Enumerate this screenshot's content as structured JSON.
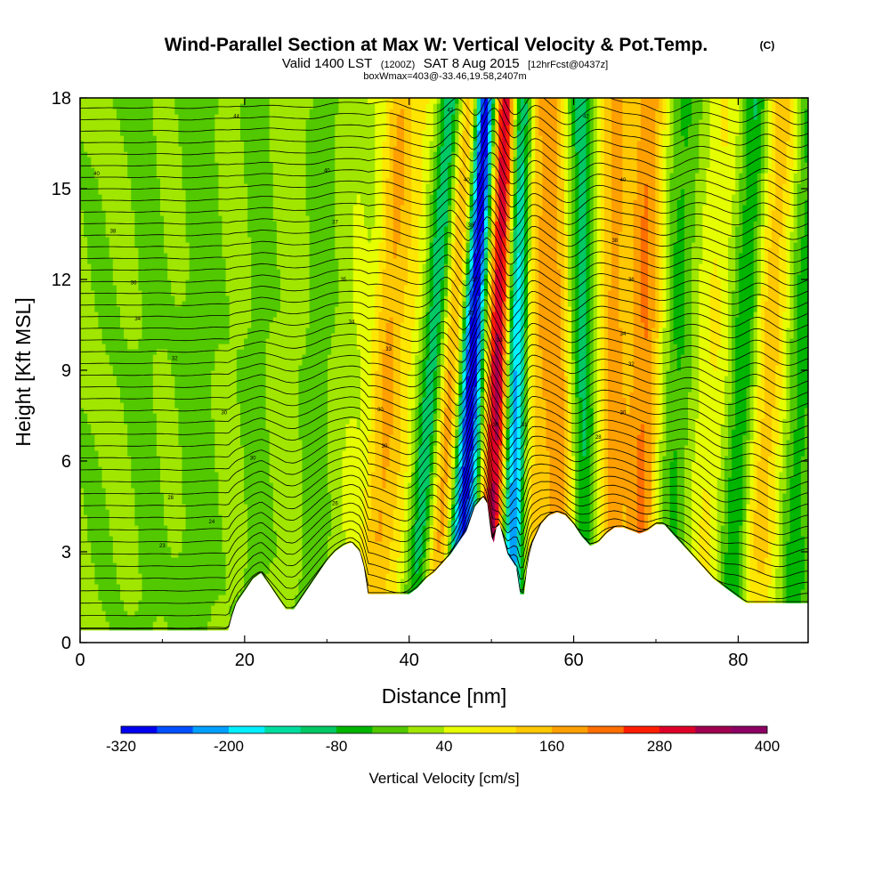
{
  "title": {
    "main": "Wind-Parallel Section at Max W: Vertical Velocity & Pot.Temp.",
    "copyright": "(C)",
    "valid_a": "Valid 1400 LST",
    "valid_b": "(1200Z)",
    "valid_c": "SAT 8 Aug 2015",
    "valid_d": "[12hrFcst@0437z]",
    "box": "boxWmax=403@-33.46,19.58,2407m"
  },
  "colors": {
    "terrain": "#ffffff",
    "contour": "#000000",
    "background": "#ffffff"
  },
  "chart_data": {
    "type": "heatmap",
    "xlabel": "Distance [nm]",
    "ylabel": "Height [Kft MSL]",
    "xlim": [
      0,
      88.5
    ],
    "ylim": [
      0,
      18
    ],
    "x_ticks": [
      0,
      20,
      40,
      60,
      80
    ],
    "y_ticks": [
      0,
      3,
      6,
      9,
      12,
      15,
      18
    ],
    "x_tick_labels": [
      "0",
      "20",
      "40",
      "60",
      "80"
    ],
    "y_tick_labels": [
      "0",
      "3",
      "6",
      "9",
      "12",
      "15",
      "18"
    ],
    "colorbar": {
      "label": "Vertical Velocity [cm/s]",
      "tick_values": [
        -320,
        -200,
        -80,
        40,
        160,
        280,
        400
      ],
      "tick_labels": [
        "-320",
        "-200",
        "-80",
        "40",
        "160",
        "280",
        "400"
      ],
      "levels": [
        -320,
        -280,
        -240,
        -200,
        -160,
        -120,
        -80,
        -40,
        0,
        40,
        80,
        120,
        160,
        200,
        240,
        280,
        320,
        360,
        400
      ],
      "colors": [
        "#0000f0",
        "#0050ff",
        "#00a0ff",
        "#00f0ff",
        "#00dca0",
        "#00c864",
        "#00b400",
        "#52c800",
        "#a0e600",
        "#e6ff00",
        "#ffe600",
        "#ffc800",
        "#ffa000",
        "#ff6e00",
        "#ff1e00",
        "#dc0028",
        "#a00050",
        "#8c0064"
      ]
    },
    "terrain_profile": {
      "x": [
        0,
        18,
        18.5,
        19,
        20,
        21,
        22,
        23,
        24,
        25,
        26,
        27,
        28,
        29,
        30,
        31,
        32,
        33,
        34,
        34.5,
        35,
        36,
        37,
        38,
        39,
        40,
        41,
        42,
        43,
        44,
        45,
        46,
        47,
        47.5,
        48,
        49,
        49.5,
        50,
        50.3,
        50.6,
        51,
        52,
        53,
        53.5,
        54,
        54.3,
        54.6,
        55,
        56,
        57,
        58,
        59,
        60,
        61,
        62,
        63,
        64,
        65,
        66,
        67,
        68,
        69,
        70,
        71,
        72,
        73,
        74,
        75,
        76,
        77,
        78,
        79,
        80,
        81,
        82,
        83,
        84,
        85,
        86,
        87,
        88.5
      ],
      "y": [
        0.4,
        0.4,
        0.9,
        1.3,
        1.7,
        2.1,
        2.3,
        1.9,
        1.5,
        1.1,
        1.1,
        1.5,
        1.9,
        2.3,
        2.7,
        3.0,
        3.2,
        3.3,
        3.0,
        2.5,
        1.6,
        1.6,
        1.6,
        1.6,
        1.6,
        1.6,
        1.8,
        2.1,
        2.3,
        2.6,
        2.9,
        3.3,
        3.7,
        4.1,
        4.5,
        4.8,
        4.6,
        3.5,
        3.3,
        3.8,
        3.9,
        2.9,
        2.5,
        1.6,
        1.6,
        2.4,
        2.9,
        3.3,
        3.9,
        4.2,
        4.3,
        4.2,
        3.9,
        3.5,
        3.2,
        3.3,
        3.6,
        3.8,
        3.8,
        3.7,
        3.6,
        3.7,
        3.9,
        3.9,
        3.6,
        3.3,
        3.0,
        2.7,
        2.4,
        2.1,
        1.9,
        1.7,
        1.5,
        1.3,
        1.3,
        1.3,
        1.3,
        1.3,
        1.3,
        1.3,
        1.3
      ]
    },
    "w_bands": [
      {
        "x": 2,
        "dx": 0.6,
        "w": -10,
        "width": 2.5
      },
      {
        "x": 8,
        "dx": 0.3,
        "w": -20,
        "width": 2.0
      },
      {
        "x": 14,
        "dx": 1.0,
        "w": -30,
        "width": 2.2
      },
      {
        "x": 21,
        "dx": 1.2,
        "w": -25,
        "width": 1.6
      },
      {
        "x": 28,
        "dx": 1.8,
        "w": -40,
        "width": 1.4
      },
      {
        "x": 32,
        "dx": 2.6,
        "w": 30,
        "width": 1.5
      },
      {
        "x": 35.5,
        "dx": 3.6,
        "w": 150,
        "width": 2.0
      },
      {
        "x": 38,
        "dx": 4.2,
        "w": 60,
        "width": 1.8
      },
      {
        "x": 40.5,
        "dx": 4.7,
        "w": -150,
        "width": 1.5
      },
      {
        "x": 43,
        "dx": 4.6,
        "w": 190,
        "width": 1.8
      },
      {
        "x": 45,
        "dx": 4.0,
        "w": -200,
        "width": 1.2
      },
      {
        "x": 46.5,
        "dx": 3.0,
        "w": -230,
        "width": 1.3
      },
      {
        "x": 48.6,
        "dx": 2.3,
        "w": 80,
        "width": 1.2
      },
      {
        "x": 50.1,
        "dx": 2.0,
        "w": 350,
        "width": 1.4
      },
      {
        "x": 52.1,
        "dx": 1.5,
        "w": -300,
        "width": 1.6
      },
      {
        "x": 55,
        "dx": -0.5,
        "w": 110,
        "width": 1.5
      },
      {
        "x": 58.5,
        "dx": -1.5,
        "w": 180,
        "width": 2.2
      },
      {
        "x": 61.5,
        "dx": -0.8,
        "w": -120,
        "width": 1.5
      },
      {
        "x": 64.5,
        "dx": 0.6,
        "w": 160,
        "width": 2.0
      },
      {
        "x": 68,
        "dx": 1.2,
        "w": 190,
        "width": 2.0
      },
      {
        "x": 71.5,
        "dx": 2.0,
        "w": -60,
        "width": 1.8
      },
      {
        "x": 75.5,
        "dx": 2.8,
        "w": 70,
        "width": 2.2
      },
      {
        "x": 79,
        "dx": 3.3,
        "w": -100,
        "width": 1.6
      },
      {
        "x": 82,
        "dx": 3.5,
        "w": 130,
        "width": 2.2
      },
      {
        "x": 86.5,
        "dx": 2.0,
        "w": -70,
        "width": 1.6
      }
    ],
    "theta_contour_labels": [
      {
        "x": 19,
        "y": 17.4,
        "label": "44"
      },
      {
        "x": 2,
        "y": 15.5,
        "label": "40"
      },
      {
        "x": 30,
        "y": 15.6,
        "label": "40"
      },
      {
        "x": 4,
        "y": 13.6,
        "label": "38"
      },
      {
        "x": 31,
        "y": 13.9,
        "label": "37"
      },
      {
        "x": 6.5,
        "y": 11.9,
        "label": "36"
      },
      {
        "x": 32,
        "y": 12.0,
        "label": "35"
      },
      {
        "x": 7,
        "y": 10.7,
        "label": "34"
      },
      {
        "x": 33,
        "y": 10.6,
        "label": "34"
      },
      {
        "x": 11.5,
        "y": 9.4,
        "label": "32"
      },
      {
        "x": 17.5,
        "y": 7.6,
        "label": "30"
      },
      {
        "x": 21,
        "y": 6.1,
        "label": "30"
      },
      {
        "x": 11,
        "y": 4.8,
        "label": "28"
      },
      {
        "x": 16,
        "y": 4.0,
        "label": "24"
      },
      {
        "x": 10,
        "y": 3.2,
        "label": "23"
      },
      {
        "x": 31,
        "y": 4.6,
        "label": "26"
      },
      {
        "x": 37.5,
        "y": 9.7,
        "label": "33"
      },
      {
        "x": 36.5,
        "y": 7.7,
        "label": "30"
      },
      {
        "x": 37,
        "y": 6.5,
        "label": "30"
      },
      {
        "x": 45,
        "y": 17.6,
        "label": "42"
      },
      {
        "x": 47,
        "y": 15.3,
        "label": "40"
      },
      {
        "x": 47.5,
        "y": 13.8,
        "label": "38"
      },
      {
        "x": 48,
        "y": 12.0,
        "label": "37"
      },
      {
        "x": 47.5,
        "y": 10.9,
        "label": "35"
      },
      {
        "x": 51,
        "y": 10.0,
        "label": "33"
      },
      {
        "x": 50.5,
        "y": 7.2,
        "label": "30"
      },
      {
        "x": 54,
        "y": 7.2,
        "label": "31"
      },
      {
        "x": 61.5,
        "y": 17.4,
        "label": "42"
      },
      {
        "x": 66,
        "y": 15.3,
        "label": "40"
      },
      {
        "x": 65,
        "y": 13.3,
        "label": "38"
      },
      {
        "x": 67,
        "y": 12.0,
        "label": "36"
      },
      {
        "x": 66,
        "y": 10.2,
        "label": "34"
      },
      {
        "x": 67,
        "y": 9.2,
        "label": "32"
      },
      {
        "x": 66,
        "y": 7.6,
        "label": "30"
      },
      {
        "x": 63,
        "y": 6.8,
        "label": "28"
      }
    ]
  }
}
